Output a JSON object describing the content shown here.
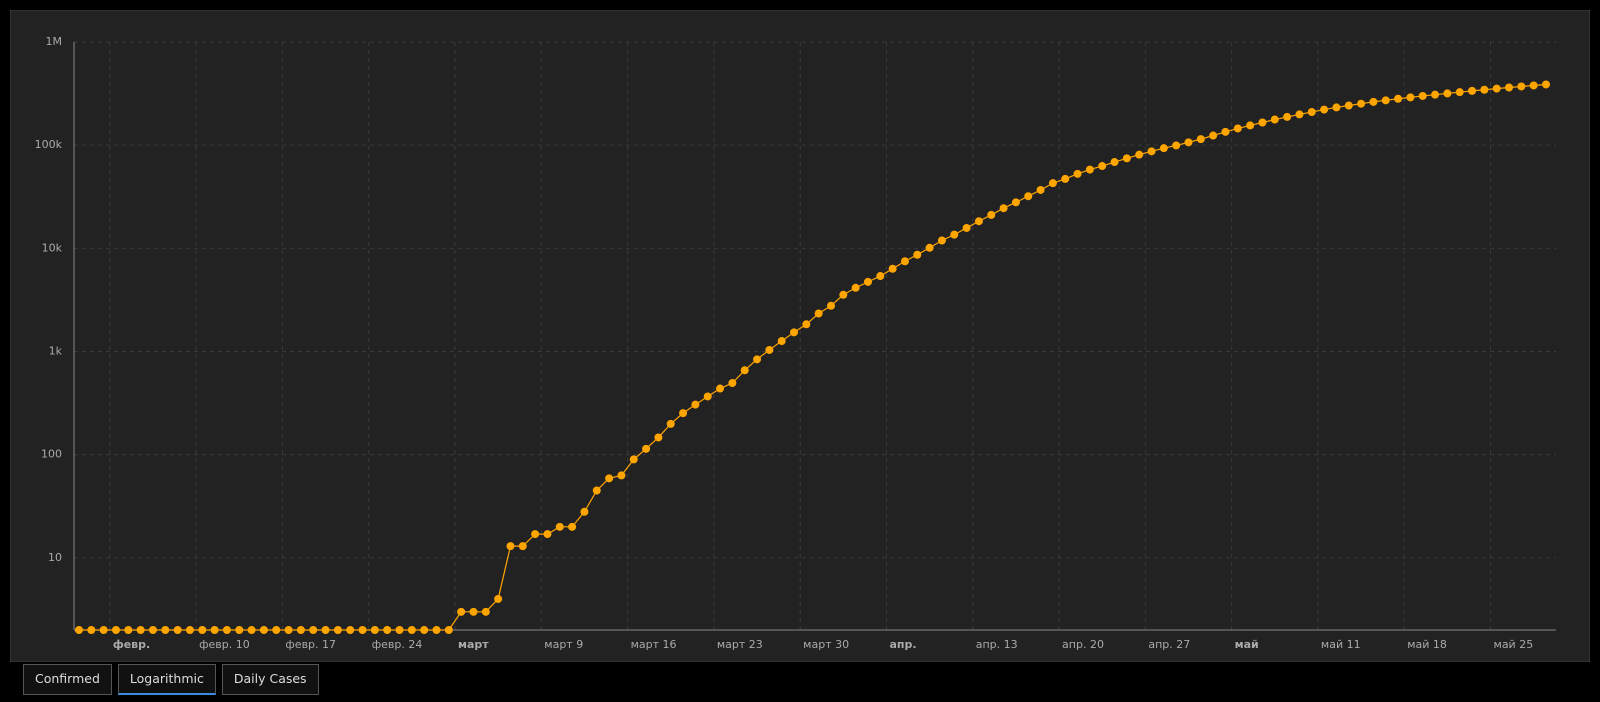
{
  "chart_data": {
    "type": "line",
    "log_scale": true,
    "grid": true,
    "color": "#ffa500",
    "categories": [
      null,
      null,
      null,
      "февр.",
      null,
      null,
      null,
      null,
      null,
      null,
      "февр. 10",
      null,
      null,
      null,
      null,
      null,
      null,
      "февр. 17",
      null,
      null,
      null,
      null,
      null,
      null,
      "февр. 24",
      null,
      null,
      null,
      null,
      null,
      null,
      "март",
      null,
      null,
      null,
      null,
      null,
      null,
      "март 9",
      null,
      null,
      null,
      null,
      null,
      null,
      "март 16",
      null,
      null,
      null,
      null,
      null,
      null,
      "март 23",
      null,
      null,
      null,
      null,
      null,
      null,
      "март 30",
      null,
      null,
      null,
      null,
      null,
      null,
      "апр.",
      null,
      null,
      null,
      null,
      null,
      null,
      "апр. 13",
      null,
      null,
      null,
      null,
      null,
      null,
      "апр. 20",
      null,
      null,
      null,
      null,
      null,
      null,
      "апр. 27",
      null,
      null,
      null,
      null,
      null,
      null,
      "май",
      null,
      null,
      null,
      null,
      null,
      null,
      "май 11",
      null,
      null,
      null,
      null,
      null,
      null,
      "май 18",
      null,
      null,
      null,
      null,
      null,
      null,
      "май 25",
      null,
      null,
      null,
      null
    ],
    "values": [
      2,
      2,
      2,
      2,
      2,
      2,
      2,
      2,
      2,
      2,
      2,
      2,
      2,
      2,
      2,
      2,
      2,
      2,
      2,
      2,
      2,
      2,
      2,
      2,
      2,
      2,
      2,
      2,
      2,
      2,
      2,
      3,
      3,
      3,
      4,
      13,
      13,
      17,
      17,
      20,
      20,
      28,
      45,
      59,
      63,
      90,
      114,
      147,
      199,
      253,
      306,
      367,
      438,
      495,
      658,
      840,
      1036,
      1264,
      1534,
      1836,
      2337,
      2777,
      3548,
      4149,
      4731,
      5389,
      6343,
      7497,
      8672,
      10131,
      11917,
      13584,
      15770,
      18328,
      21102,
      24490,
      27938,
      32008,
      36793,
      42853,
      47121,
      52763,
      57999,
      62773,
      68622,
      74588,
      80949,
      87147,
      93558,
      99399,
      106498,
      114431,
      124054,
      134686,
      145268,
      155370,
      165929,
      177160,
      187859,
      198676,
      209688,
      221344,
      232243,
      242271,
      252245,
      262843,
      272043,
      281752,
      290678,
      299941,
      308705,
      317554,
      326448,
      335882,
      344481,
      353427,
      362342,
      370680,
      379051,
      387623
    ],
    "ylim": [
      2,
      1000000
    ],
    "yticks": [
      10,
      100,
      {
        "value": 1000,
        "label": "1k"
      },
      {
        "value": 10000,
        "label": "10k"
      },
      {
        "value": 100000,
        "label": "100k"
      },
      {
        "value": 1000000,
        "label": "1M"
      }
    ]
  },
  "tabs": [
    "Confirmed",
    "Logarithmic",
    "Daily Cases"
  ]
}
